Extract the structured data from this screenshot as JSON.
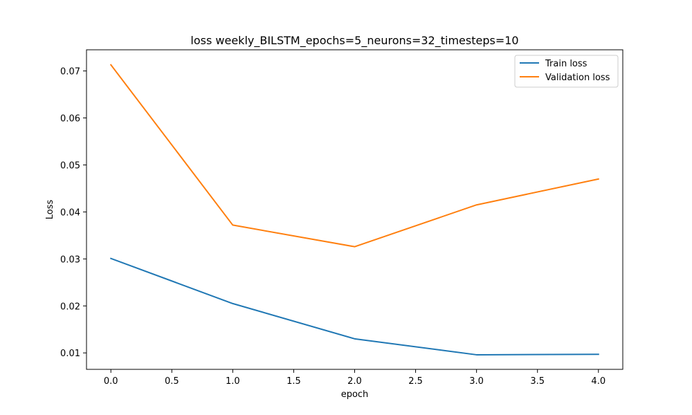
{
  "chart_data": {
    "type": "line",
    "title": "loss weekly_BILSTM_epochs=5_neurons=32_timesteps=10",
    "xlabel": "epoch",
    "ylabel": "Loss",
    "x": [
      0,
      1,
      2,
      3,
      4
    ],
    "xlim": [
      -0.2,
      4.2
    ],
    "ylim": [
      0.0065,
      0.0745
    ],
    "xticks": [
      0.0,
      0.5,
      1.0,
      1.5,
      2.0,
      2.5,
      3.0,
      3.5,
      4.0
    ],
    "xtick_labels": [
      "0.0",
      "0.5",
      "1.0",
      "1.5",
      "2.0",
      "2.5",
      "3.0",
      "3.5",
      "4.0"
    ],
    "yticks": [
      0.01,
      0.02,
      0.03,
      0.04,
      0.05,
      0.06,
      0.07
    ],
    "ytick_labels": [
      "0.01",
      "0.02",
      "0.03",
      "0.04",
      "0.05",
      "0.06",
      "0.07"
    ],
    "grid": false,
    "legend_position": "top-right",
    "series": [
      {
        "name": "Train loss",
        "color": "#1f77b4",
        "values": [
          0.0301,
          0.0205,
          0.013,
          0.0096,
          0.0097
        ]
      },
      {
        "name": "Validation loss",
        "color": "#ff7f0e",
        "values": [
          0.0713,
          0.0372,
          0.0326,
          0.0415,
          0.047
        ]
      }
    ]
  }
}
